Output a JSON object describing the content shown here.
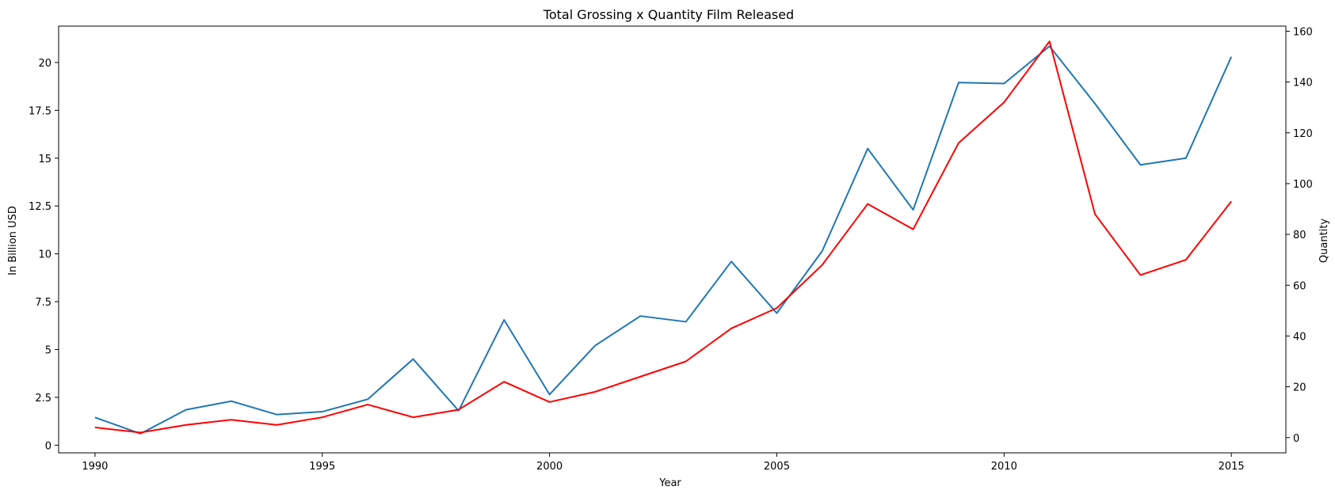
{
  "chart_data": {
    "type": "line",
    "title": "Total Grossing x Quantity Film Released",
    "xlabel": "Year",
    "ylabel_left": "In Billion USD",
    "ylabel_right": "Quantity",
    "xlim": [
      1989.2,
      2016.2
    ],
    "ylim_left": [
      -0.4,
      21.9
    ],
    "ylim_right": [
      -6,
      162
    ],
    "x_ticks": [
      1990,
      1995,
      2000,
      2005,
      2010,
      2015
    ],
    "y_ticks_left": [
      0,
      2.5,
      5,
      7.5,
      10,
      12.5,
      15,
      17.5,
      20
    ],
    "y_tick_labels_left": [
      "0",
      "2.5",
      "5",
      "7.5",
      "10",
      "12.5",
      "15",
      "17.5",
      "20"
    ],
    "y_ticks_right": [
      0,
      20,
      40,
      60,
      80,
      100,
      120,
      140,
      160
    ],
    "x": [
      1990,
      1991,
      1992,
      1993,
      1994,
      1995,
      1996,
      1997,
      1998,
      1999,
      2000,
      2001,
      2002,
      2003,
      2004,
      2005,
      2006,
      2007,
      2008,
      2009,
      2010,
      2011,
      2012,
      2013,
      2014,
      2015
    ],
    "series": [
      {
        "axis": "left",
        "color": "#1f77b4",
        "values": [
          1.45,
          0.6,
          1.85,
          2.3,
          1.6,
          1.75,
          2.4,
          4.5,
          1.8,
          6.55,
          2.65,
          5.2,
          6.75,
          6.45,
          9.6,
          6.9,
          10.15,
          15.5,
          12.3,
          18.95,
          18.9,
          20.85,
          17.85,
          14.65,
          15.0,
          20.3
        ]
      },
      {
        "axis": "right",
        "color": "#ff0000",
        "values": [
          4,
          2,
          5,
          7,
          5,
          8,
          13,
          8,
          11,
          22,
          14,
          18,
          24,
          30,
          43,
          51,
          68,
          92,
          82,
          116,
          132,
          156,
          88,
          64,
          70,
          93
        ]
      }
    ],
    "grid": false,
    "legend": "none"
  }
}
